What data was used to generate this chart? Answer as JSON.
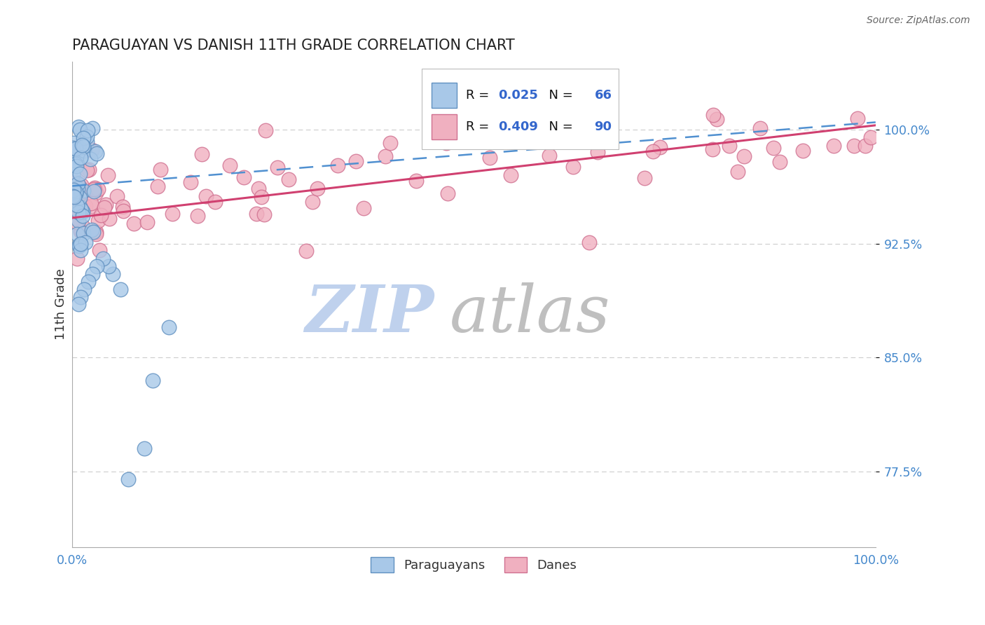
{
  "title": "PARAGUAYAN VS DANISH 11TH GRADE CORRELATION CHART",
  "source": "Source: ZipAtlas.com",
  "ylabel": "11th Grade",
  "ytick_display": [
    0.775,
    0.85,
    0.925,
    1.0
  ],
  "ytick_display_labels": [
    "77.5%",
    "85.0%",
    "92.5%",
    "100.0%"
  ],
  "xmin": 0.0,
  "xmax": 1.0,
  "ymin": 0.725,
  "ymax": 1.045,
  "paraguayan_color": "#a8c8e8",
  "danish_color": "#f0b0c0",
  "paraguayan_edge": "#6090c0",
  "danish_edge": "#d07090",
  "trend_blue_color": "#5090d0",
  "trend_pink_color": "#d04070",
  "r_blue": 0.025,
  "n_blue": 66,
  "r_pink": 0.409,
  "n_pink": 90,
  "tick_color": "#4488cc",
  "axis_color": "#aaaaaa",
  "grid_color": "#cccccc",
  "watermark_zip_color": "#c8d8f0",
  "watermark_atlas_color": "#c0c0c0",
  "legend_text_color": "#000000",
  "legend_r_color": "#3366cc",
  "legend_n_color": "#3366cc"
}
